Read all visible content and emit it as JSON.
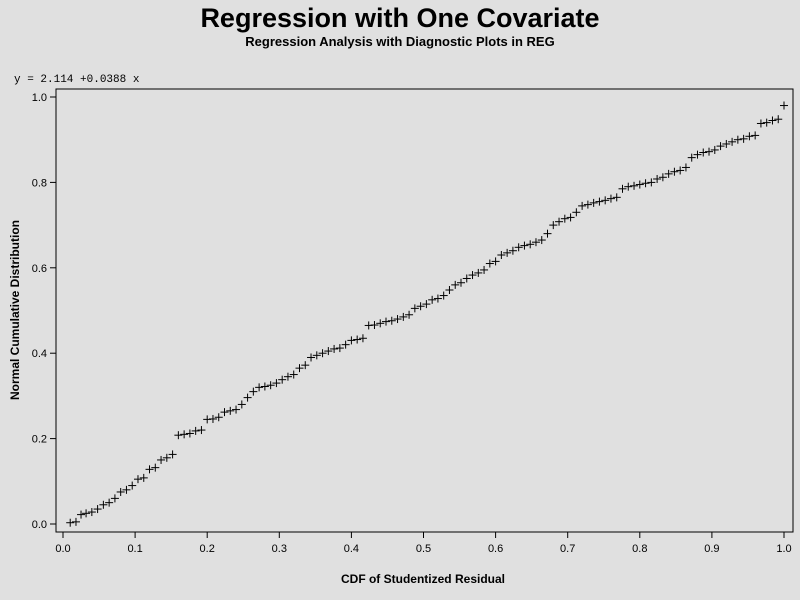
{
  "chart_data": {
    "type": "scatter",
    "title": "Regression with One Covariate",
    "subtitle": "Regression Analysis with Diagnostic Plots in REG",
    "equation": "y = 2.114 +0.0388 x",
    "xlabel": "CDF of Studentized Residual",
    "ylabel": "Normal Cumulative Distribution",
    "xlim": [
      0,
      1
    ],
    "ylim": [
      0,
      1
    ],
    "xticks": [
      "0.0",
      "0.1",
      "0.2",
      "0.3",
      "0.4",
      "0.5",
      "0.6",
      "0.7",
      "0.8",
      "0.9",
      "1.0"
    ],
    "yticks": [
      "0.0",
      "0.2",
      "0.4",
      "0.6",
      "0.8",
      "1.0"
    ],
    "marker": "plus",
    "grid": false,
    "points": [
      [
        0.01,
        0.003
      ],
      [
        0.018,
        0.005
      ],
      [
        0.025,
        0.022
      ],
      [
        0.032,
        0.025
      ],
      [
        0.04,
        0.028
      ],
      [
        0.048,
        0.035
      ],
      [
        0.056,
        0.045
      ],
      [
        0.064,
        0.05
      ],
      [
        0.072,
        0.06
      ],
      [
        0.08,
        0.075
      ],
      [
        0.088,
        0.08
      ],
      [
        0.096,
        0.09
      ],
      [
        0.104,
        0.105
      ],
      [
        0.112,
        0.108
      ],
      [
        0.12,
        0.128
      ],
      [
        0.128,
        0.132
      ],
      [
        0.136,
        0.15
      ],
      [
        0.144,
        0.155
      ],
      [
        0.152,
        0.163
      ],
      [
        0.16,
        0.208
      ],
      [
        0.168,
        0.21
      ],
      [
        0.176,
        0.212
      ],
      [
        0.184,
        0.218
      ],
      [
        0.192,
        0.22
      ],
      [
        0.2,
        0.245
      ],
      [
        0.208,
        0.246
      ],
      [
        0.216,
        0.25
      ],
      [
        0.224,
        0.262
      ],
      [
        0.232,
        0.265
      ],
      [
        0.24,
        0.268
      ],
      [
        0.248,
        0.28
      ],
      [
        0.256,
        0.296
      ],
      [
        0.264,
        0.31
      ],
      [
        0.272,
        0.32
      ],
      [
        0.28,
        0.322
      ],
      [
        0.288,
        0.325
      ],
      [
        0.296,
        0.33
      ],
      [
        0.304,
        0.338
      ],
      [
        0.312,
        0.345
      ],
      [
        0.32,
        0.35
      ],
      [
        0.328,
        0.365
      ],
      [
        0.336,
        0.372
      ],
      [
        0.344,
        0.39
      ],
      [
        0.352,
        0.395
      ],
      [
        0.36,
        0.4
      ],
      [
        0.368,
        0.405
      ],
      [
        0.376,
        0.41
      ],
      [
        0.384,
        0.412
      ],
      [
        0.392,
        0.42
      ],
      [
        0.4,
        0.43
      ],
      [
        0.408,
        0.432
      ],
      [
        0.416,
        0.435
      ],
      [
        0.424,
        0.465
      ],
      [
        0.432,
        0.466
      ],
      [
        0.44,
        0.47
      ],
      [
        0.448,
        0.474
      ],
      [
        0.456,
        0.476
      ],
      [
        0.464,
        0.48
      ],
      [
        0.472,
        0.485
      ],
      [
        0.48,
        0.49
      ],
      [
        0.488,
        0.505
      ],
      [
        0.496,
        0.51
      ],
      [
        0.504,
        0.515
      ],
      [
        0.512,
        0.525
      ],
      [
        0.52,
        0.528
      ],
      [
        0.528,
        0.535
      ],
      [
        0.536,
        0.548
      ],
      [
        0.544,
        0.56
      ],
      [
        0.552,
        0.565
      ],
      [
        0.56,
        0.575
      ],
      [
        0.568,
        0.583
      ],
      [
        0.576,
        0.588
      ],
      [
        0.584,
        0.595
      ],
      [
        0.592,
        0.61
      ],
      [
        0.6,
        0.615
      ],
      [
        0.608,
        0.63
      ],
      [
        0.616,
        0.635
      ],
      [
        0.624,
        0.64
      ],
      [
        0.632,
        0.648
      ],
      [
        0.64,
        0.652
      ],
      [
        0.648,
        0.655
      ],
      [
        0.656,
        0.66
      ],
      [
        0.664,
        0.665
      ],
      [
        0.672,
        0.68
      ],
      [
        0.68,
        0.7
      ],
      [
        0.688,
        0.708
      ],
      [
        0.696,
        0.715
      ],
      [
        0.704,
        0.718
      ],
      [
        0.712,
        0.73
      ],
      [
        0.72,
        0.745
      ],
      [
        0.728,
        0.748
      ],
      [
        0.736,
        0.752
      ],
      [
        0.744,
        0.755
      ],
      [
        0.752,
        0.758
      ],
      [
        0.76,
        0.762
      ],
      [
        0.768,
        0.765
      ],
      [
        0.776,
        0.785
      ],
      [
        0.784,
        0.79
      ],
      [
        0.792,
        0.792
      ],
      [
        0.8,
        0.795
      ],
      [
        0.808,
        0.798
      ],
      [
        0.816,
        0.8
      ],
      [
        0.824,
        0.808
      ],
      [
        0.832,
        0.812
      ],
      [
        0.84,
        0.82
      ],
      [
        0.848,
        0.825
      ],
      [
        0.856,
        0.828
      ],
      [
        0.864,
        0.835
      ],
      [
        0.872,
        0.858
      ],
      [
        0.88,
        0.865
      ],
      [
        0.888,
        0.87
      ],
      [
        0.896,
        0.872
      ],
      [
        0.904,
        0.876
      ],
      [
        0.912,
        0.885
      ],
      [
        0.92,
        0.89
      ],
      [
        0.928,
        0.895
      ],
      [
        0.936,
        0.9
      ],
      [
        0.944,
        0.902
      ],
      [
        0.952,
        0.908
      ],
      [
        0.96,
        0.91
      ],
      [
        0.968,
        0.938
      ],
      [
        0.976,
        0.94
      ],
      [
        0.984,
        0.945
      ],
      [
        0.992,
        0.948
      ],
      [
        1.0,
        0.98
      ]
    ]
  }
}
